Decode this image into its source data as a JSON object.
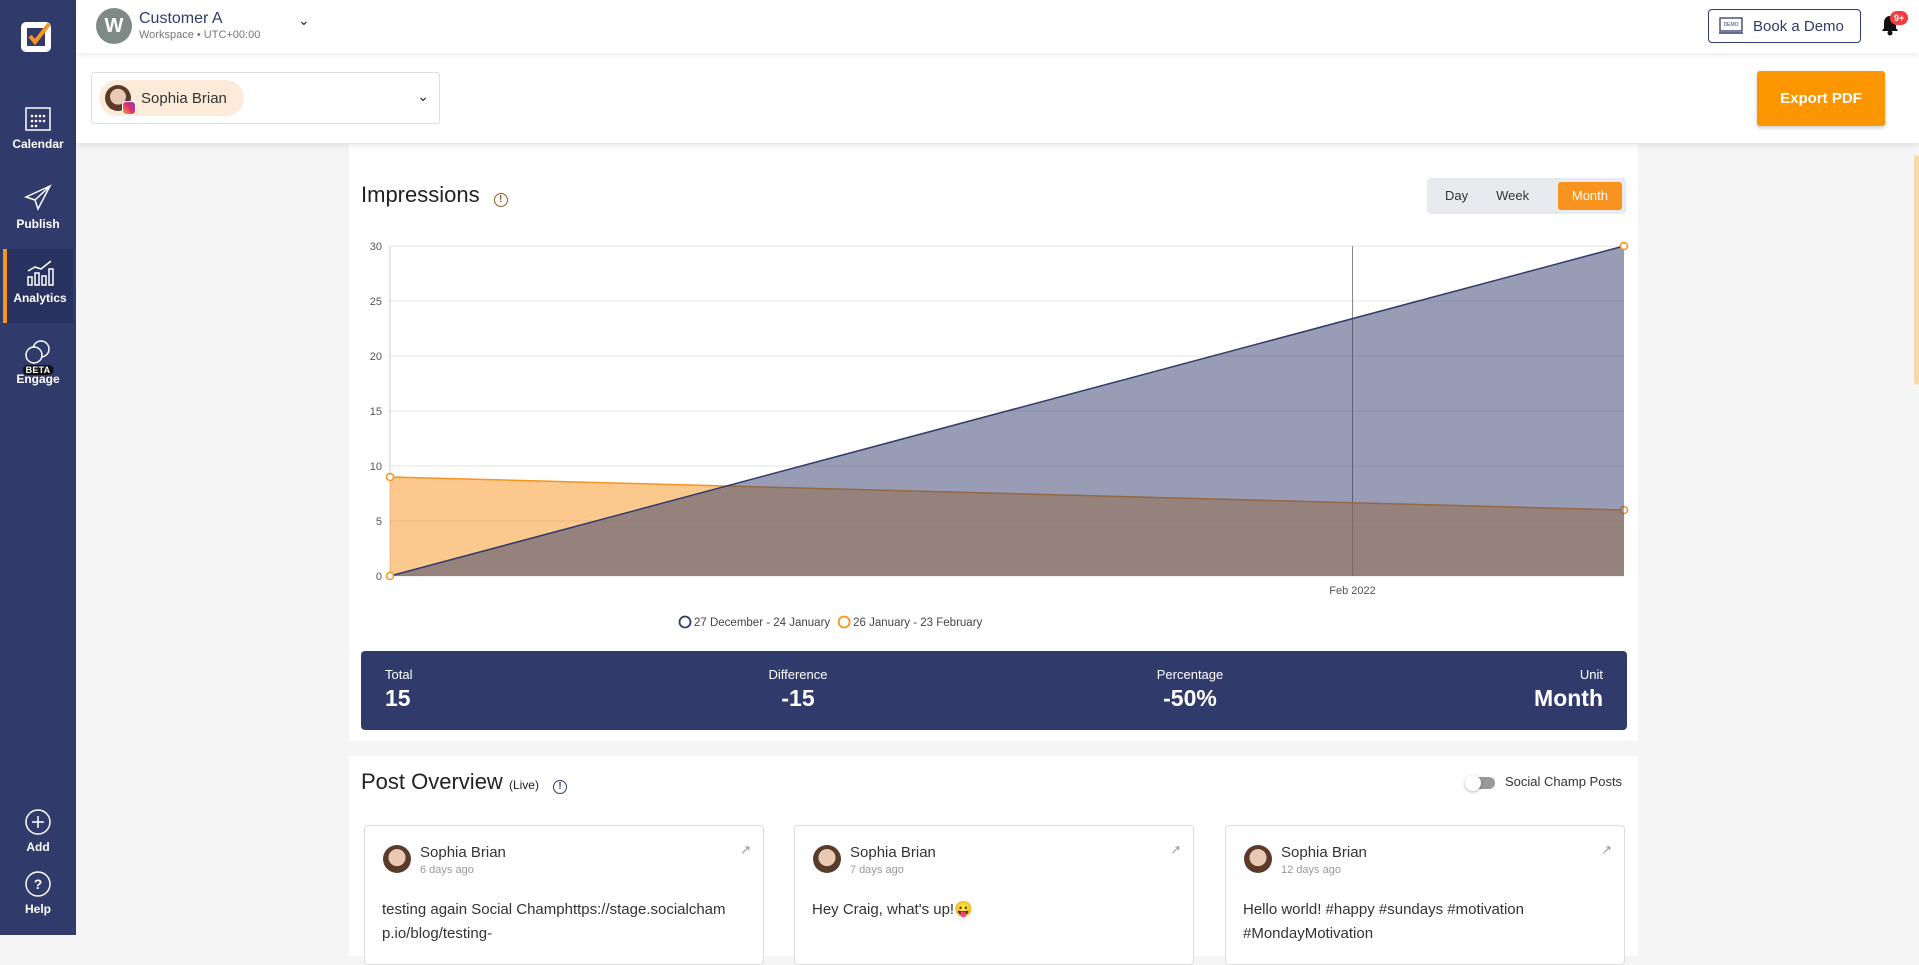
{
  "sidebar": {
    "items": [
      {
        "label": "Calendar"
      },
      {
        "label": "Publish"
      },
      {
        "label": "Analytics"
      },
      {
        "label": "Engage",
        "badge": "BETA"
      }
    ],
    "add": "Add",
    "help": "Help"
  },
  "header": {
    "workspace_initial": "W",
    "workspace_name": "Customer A",
    "workspace_sub": "Workspace • UTC+00:00",
    "book_demo": "Book a Demo",
    "demo_icon_text": "DEMO",
    "notification_count": "9+"
  },
  "filter": {
    "profile_name": "Sophia Brian",
    "export": "Export PDF"
  },
  "impressions": {
    "title": "Impressions",
    "info": "!",
    "tabs": [
      "Day",
      "Week",
      "Month"
    ],
    "active_tab": "Month",
    "summary": [
      {
        "label": "Total",
        "value": "15"
      },
      {
        "label": "Difference",
        "value": "-15"
      },
      {
        "label": "Percentage",
        "value": "-50%"
      },
      {
        "label": "Unit",
        "value": "Month"
      }
    ]
  },
  "chart_data": {
    "type": "area",
    "x": [
      0,
      1
    ],
    "ylim": [
      0,
      30
    ],
    "yticks": [
      0,
      5,
      10,
      15,
      20,
      25,
      30
    ],
    "xticks": [
      {
        "label": "Feb 2022",
        "x": 0.78
      }
    ],
    "series": [
      {
        "name": "27 December - 24 January",
        "values": [
          0,
          30
        ],
        "color": "#313b6b"
      },
      {
        "name": "26 January - 23 February",
        "values": [
          9,
          6
        ],
        "color": "#f7931e"
      }
    ],
    "legend": "bottom-center",
    "grid": true
  },
  "posts": {
    "title": "Post Overview",
    "live": "(Live)",
    "toggle_label": "Social Champ Posts",
    "items": [
      {
        "author": "Sophia Brian",
        "time": "6 days ago",
        "text": "testing again Social Champhttps://stage.socialchamp.io/blog/testing-"
      },
      {
        "author": "Sophia Brian",
        "time": "7 days ago",
        "text": "Hey Craig, what's up!😛"
      },
      {
        "author": "Sophia Brian",
        "time": "12 days ago",
        "text": "Hello world! #happy #sundays #motivation #MondayMotivation"
      }
    ]
  }
}
